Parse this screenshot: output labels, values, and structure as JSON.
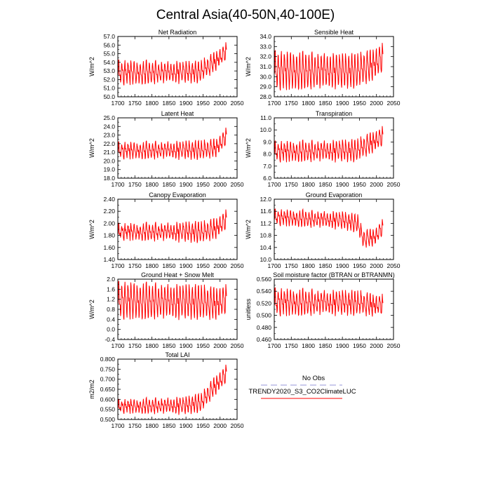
{
  "figure_title": "Central Asia(40-50N,40-100E)",
  "colors": {
    "model": "#ff0000",
    "obs": "#b9b9e6",
    "axis": "#000000"
  },
  "legend": {
    "obs_label": "No Obs",
    "model_label": "TRENDY2020_S3_CO2ClimateLUC"
  },
  "chart_data": [
    {
      "type": "line",
      "title": "Net Radiation",
      "ylabel": "W/m^2",
      "xlim": [
        1700,
        2050
      ],
      "xticks": [
        1700,
        1750,
        1800,
        1850,
        1900,
        1950,
        2000,
        2050
      ],
      "ylim": [
        50,
        57
      ],
      "yticks": [
        "50.0",
        "51.0",
        "52.0",
        "53.0",
        "54.0",
        "55.0",
        "56.0",
        "57.0"
      ],
      "series": [
        {
          "name": "TRENDY2020_S3_CO2ClimateLUC",
          "start": 1701,
          "end": 2019,
          "period": 9,
          "osc_start": 1.4,
          "osc_end": 1.1,
          "noise": 0.35,
          "trend": [
            [
              1701,
              52.8
            ],
            [
              1940,
              52.9
            ],
            [
              1980,
              54.0
            ],
            [
              2019,
              55.2
            ]
          ]
        }
      ]
    },
    {
      "type": "line",
      "title": "Sensible Heat",
      "ylabel": "W/m^2",
      "xlim": [
        1700,
        2050
      ],
      "xticks": [
        1700,
        1750,
        1800,
        1850,
        1900,
        1950,
        2000,
        2050
      ],
      "ylim": [
        28,
        34
      ],
      "yticks": [
        "28.0",
        "29.0",
        "30.0",
        "31.0",
        "32.0",
        "33.0",
        "34.0"
      ],
      "series": [
        {
          "name": "TRENDY2020_S3_CO2ClimateLUC",
          "start": 1701,
          "end": 2019,
          "period": 9,
          "osc_start": 2.0,
          "osc_end": 1.6,
          "noise": 0.35,
          "trend": [
            [
              1701,
              30.6
            ],
            [
              1940,
              30.6
            ],
            [
              1980,
              31.1
            ],
            [
              2019,
              31.8
            ]
          ]
        }
      ]
    },
    {
      "type": "line",
      "title": "Latent Heat",
      "ylabel": "W/m^2",
      "xlim": [
        1700,
        2050
      ],
      "xticks": [
        1700,
        1750,
        1800,
        1850,
        1900,
        1950,
        2000,
        2050
      ],
      "ylim": [
        18,
        25
      ],
      "yticks": [
        "18.0",
        "19.0",
        "20.0",
        "21.0",
        "22.0",
        "23.0",
        "24.0",
        "25.0"
      ],
      "series": [
        {
          "name": "TRENDY2020_S3_CO2ClimateLUC",
          "start": 1701,
          "end": 2019,
          "period": 9,
          "osc_start": 0.9,
          "osc_end": 1.1,
          "noise": 0.3,
          "trend": [
            [
              1701,
              21.2
            ],
            [
              1950,
              21.3
            ],
            [
              1990,
              21.6
            ],
            [
              2019,
              22.8
            ]
          ]
        }
      ]
    },
    {
      "type": "line",
      "title": "Transpiration",
      "ylabel": "W/m^2",
      "xlim": [
        1700,
        2050
      ],
      "xticks": [
        1700,
        1750,
        1800,
        1850,
        1900,
        1950,
        2000,
        2050
      ],
      "ylim": [
        6,
        11
      ],
      "yticks": [
        "6.0",
        "7.0",
        "8.0",
        "9.0",
        "10.0",
        "11.0"
      ],
      "series": [
        {
          "name": "TRENDY2020_S3_CO2ClimateLUC",
          "start": 1701,
          "end": 2019,
          "period": 9,
          "osc_start": 0.8,
          "osc_end": 0.9,
          "noise": 0.25,
          "trend": [
            [
              1701,
              8.2
            ],
            [
              1940,
              8.3
            ],
            [
              1980,
              8.9
            ],
            [
              2019,
              9.4
            ]
          ]
        }
      ]
    },
    {
      "type": "line",
      "title": "Canopy Evaporation",
      "ylabel": "W/m^2",
      "xlim": [
        1700,
        2050
      ],
      "xticks": [
        1700,
        1750,
        1800,
        1850,
        1900,
        1950,
        2000,
        2050
      ],
      "ylim": [
        1.4,
        2.4
      ],
      "yticks": [
        "1.40",
        "1.60",
        "1.80",
        "2.00",
        "2.20",
        "2.40"
      ],
      "series": [
        {
          "name": "TRENDY2020_S3_CO2ClimateLUC",
          "start": 1701,
          "end": 2019,
          "period": 9,
          "osc_start": 0.12,
          "osc_end": 0.18,
          "noise": 0.05,
          "trend": [
            [
              1701,
              1.86
            ],
            [
              1950,
              1.86
            ],
            [
              1990,
              1.93
            ],
            [
              2019,
              2.05
            ]
          ]
        }
      ]
    },
    {
      "type": "line",
      "title": "Ground Evaporation",
      "ylabel": "W/m^2",
      "xlim": [
        1700,
        2050
      ],
      "xticks": [
        1700,
        1750,
        1800,
        1850,
        1900,
        1950,
        2000,
        2050
      ],
      "ylim": [
        10,
        12
      ],
      "yticks": [
        "10.0",
        "10.4",
        "10.8",
        "11.2",
        "11.6",
        "12.0"
      ],
      "series": [
        {
          "name": "TRENDY2020_S3_CO2ClimateLUC",
          "start": 1701,
          "end": 2019,
          "period": 9,
          "osc_start": 0.25,
          "osc_end": 0.3,
          "noise": 0.08,
          "trend": [
            [
              1701,
              11.4
            ],
            [
              1900,
              11.3
            ],
            [
              1945,
              11.2
            ],
            [
              1960,
              10.7
            ],
            [
              1995,
              10.75
            ],
            [
              2019,
              11.05
            ]
          ]
        }
      ]
    },
    {
      "type": "line",
      "title": "Ground Heat + Snow Melt",
      "ylabel": "W/m^2",
      "xlim": [
        1700,
        2050
      ],
      "xticks": [
        1700,
        1750,
        1800,
        1850,
        1900,
        1950,
        2000,
        2050
      ],
      "ylim": [
        -0.4,
        2.0
      ],
      "yticks": [
        "-0.4",
        "0.0",
        "0.4",
        "0.8",
        "1.2",
        "1.6",
        "2.0"
      ],
      "series": [
        {
          "name": "TRENDY2020_S3_CO2ClimateLUC",
          "start": 1701,
          "end": 2019,
          "period": 9,
          "osc_start": 0.75,
          "osc_end": 0.65,
          "noise": 0.15,
          "trend": [
            [
              1701,
              1.15
            ],
            [
              1950,
              1.1
            ],
            [
              1985,
              1.05
            ],
            [
              2019,
              1.15
            ]
          ]
        }
      ]
    },
    {
      "type": "line",
      "title": "Soil moisture factor (BTRAN or BTRANMN)",
      "ylabel": "unitless",
      "xlim": [
        1700,
        2050
      ],
      "xticks": [
        1700,
        1750,
        1800,
        1850,
        1900,
        1950,
        2000,
        2050
      ],
      "ylim": [
        0.46,
        0.56
      ],
      "yticks": [
        "0.460",
        "0.480",
        "0.500",
        "0.520",
        "0.540",
        "0.560"
      ],
      "series": [
        {
          "name": "TRENDY2020_S3_CO2ClimateLUC",
          "start": 1701,
          "end": 2019,
          "period": 9,
          "osc_start": 0.022,
          "osc_end": 0.018,
          "noise": 0.006,
          "trend": [
            [
              1701,
              0.522
            ],
            [
              1950,
              0.521
            ],
            [
              2019,
              0.516
            ]
          ]
        }
      ]
    },
    {
      "type": "line",
      "title": "Total LAI",
      "ylabel": "m2/m2",
      "xlim": [
        1700,
        2050
      ],
      "xticks": [
        1700,
        1750,
        1800,
        1850,
        1900,
        1950,
        2000,
        2050
      ],
      "ylim": [
        0.5,
        0.8
      ],
      "yticks": [
        "0.500",
        "0.550",
        "0.600",
        "0.650",
        "0.700",
        "0.750",
        "0.800"
      ],
      "series": [
        {
          "name": "TRENDY2020_S3_CO2ClimateLUC",
          "start": 1701,
          "end": 2019,
          "period": 9,
          "osc_start": 0.03,
          "osc_end": 0.05,
          "noise": 0.012,
          "trend": [
            [
              1701,
              0.565
            ],
            [
              1900,
              0.57
            ],
            [
              1945,
              0.585
            ],
            [
              1980,
              0.66
            ],
            [
              2019,
              0.725
            ]
          ]
        }
      ]
    }
  ]
}
